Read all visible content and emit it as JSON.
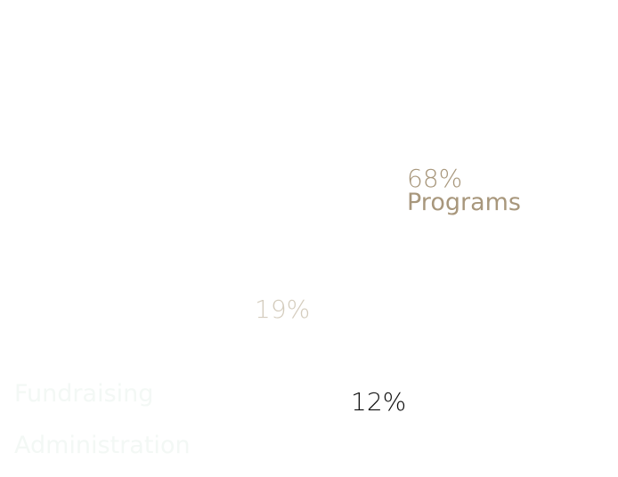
{
  "colors": {
    "programs": "#a8977c",
    "fundraising": "#d4ccbd",
    "administration": "#111111",
    "title": "#fbfdfb",
    "legend_text": "#f3f8f5",
    "background": "#ffffff"
  },
  "chart_data": {
    "type": "pie",
    "title_lines": [
      "",
      ""
    ],
    "categories": [
      "Programs",
      "Fundraising",
      "Administration"
    ],
    "values": [
      68,
      19,
      12
    ],
    "value_labels": [
      "68%",
      "19%",
      "12%"
    ],
    "value_unit": "%"
  }
}
